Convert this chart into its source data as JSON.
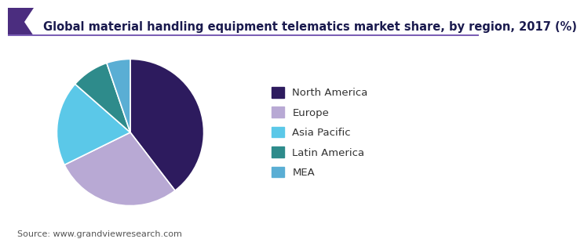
{
  "title": "Global material handling equipment telematics market share, by region, 2017 (%)",
  "labels": [
    "North America",
    "Europe",
    "Asia Pacific",
    "Latin America",
    "MEA"
  ],
  "values": [
    38,
    27,
    18,
    8,
    5
  ],
  "colors": [
    "#2d1b5e",
    "#b8a9d4",
    "#5bc8e8",
    "#2e8b8b",
    "#5aaed4"
  ],
  "source": "Source: www.grandviewresearch.com",
  "startangle": 90,
  "title_fontsize": 10.5,
  "legend_fontsize": 9.5,
  "source_fontsize": 8,
  "bg_color": "#ffffff",
  "title_color": "#1a1a4e",
  "wedge_edge_color": "#ffffff",
  "header_colors": [
    "#4b2d7f",
    "#6a47a0",
    "#8a6bbf"
  ],
  "header_line_color": "#7b5fb5",
  "thin_line_color": "#7b5fb5"
}
